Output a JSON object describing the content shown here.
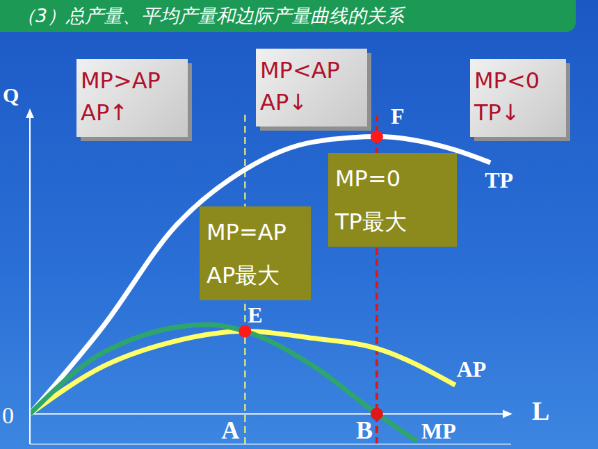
{
  "chart_data": {
    "type": "line",
    "title": "（3）总产量、平均产量和边际产量曲线的关系",
    "x_label": "L",
    "y_label": "Q",
    "origin_label": "0",
    "xlim": [
      0,
      10
    ],
    "ylim": [
      -1,
      10
    ],
    "xticks": [],
    "yticks": [],
    "tick_labels": false,
    "grid": false,
    "series": [
      {
        "name": "TP",
        "color": "#ffffff",
        "x": [
          0,
          1.55,
          2.99,
          4.47,
          5.88,
          7.21,
          8.77,
          9.57
        ],
        "values": [
          0,
          2.95,
          6.14,
          8.07,
          8.98,
          9.16,
          8.75,
          8.3
        ]
      },
      {
        "name": "AP",
        "color": "#ffff66",
        "x": [
          0,
          1.55,
          2.99,
          4.47,
          5.88,
          7.21,
          8.84
        ],
        "values": [
          0,
          1.59,
          2.39,
          2.73,
          2.5,
          2.16,
          0.95
        ]
      },
      {
        "name": "MP",
        "color": "#2fa56e",
        "x": [
          0,
          1.55,
          3.71,
          4.47,
          5.88,
          7.21,
          8.05
        ],
        "values": [
          0,
          2.05,
          2.95,
          2.73,
          1.59,
          0,
          -0.91
        ]
      }
    ],
    "points": [
      {
        "label": "E",
        "x": 4.47,
        "y": 2.73,
        "color": "#ff1a1a"
      },
      {
        "label": "F",
        "x": 7.21,
        "y": 9.16,
        "color": "#ff1a1a"
      }
    ],
    "vlines": [
      {
        "label": "A",
        "x": 4.47,
        "color": "#ffff66",
        "line_style": "dashed"
      },
      {
        "label": "B",
        "x": 7.21,
        "color": "#e01818",
        "line_style": "dashed",
        "marker": "circle"
      }
    ],
    "annotations": [
      {
        "lines": [
          "MP>AP",
          "AP↑"
        ]
      },
      {
        "lines": [
          "MP<AP",
          "AP↓"
        ]
      },
      {
        "lines": [
          "MP<0",
          "TP↓"
        ]
      },
      {
        "lines": [
          "MP=AP",
          "AP最大"
        ]
      },
      {
        "lines": [
          "MP=0",
          "TP最大"
        ]
      }
    ]
  }
}
